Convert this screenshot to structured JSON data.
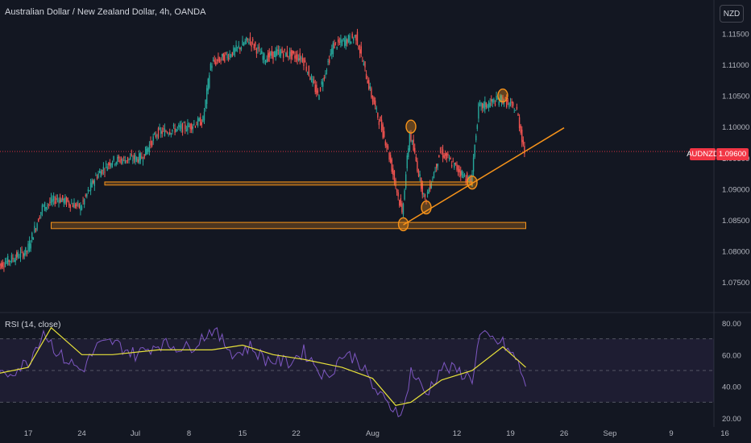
{
  "header": {
    "title": "Australian Dollar / New Zealand Dollar, 4h, OANDA"
  },
  "currency_button": {
    "label": "NZD"
  },
  "price_tag": {
    "symbol": "AUDNZD",
    "value": "1.09600"
  },
  "rsi_panel": {
    "title": "RSI (14, close)"
  },
  "colors": {
    "up": "#26a69a",
    "down": "#ef5350",
    "annotation": "#f7931a",
    "rsi": "#7e57c2",
    "rsi_ma": "#e8e23a",
    "background": "#131722"
  },
  "chart_data": [
    {
      "type": "candlestick",
      "title": "Australian Dollar / New Zealand Dollar, 4h, OANDA",
      "y_axis": {
        "ticks": [
          "1.11500",
          "1.11000",
          "1.10500",
          "1.10000",
          "1.09500",
          "1.09000",
          "1.08500",
          "1.08000",
          "1.07500"
        ],
        "ylim": [
          1.0705,
          1.1175
        ]
      },
      "x_axis": {
        "ticks": [
          "17",
          "24",
          "Jul",
          "8",
          "15",
          "22",
          "Aug",
          "12",
          "19",
          "26",
          "Sep",
          "9",
          "16"
        ]
      },
      "last_price": 1.096,
      "price_path": [
        {
          "date": "Jun 13",
          "price": 1.0775
        },
        {
          "date": "Jun 17",
          "price": 1.08
        },
        {
          "date": "Jun 19",
          "price": 1.087
        },
        {
          "date": "Jun 21",
          "price": 1.0885
        },
        {
          "date": "Jun 24",
          "price": 1.087
        },
        {
          "date": "Jun 26",
          "price": 1.092
        },
        {
          "date": "Jun 28",
          "price": 1.0945
        },
        {
          "date": "Jul 2",
          "price": 1.095
        },
        {
          "date": "Jul 4",
          "price": 1.099
        },
        {
          "date": "Jul 8",
          "price": 1.1
        },
        {
          "date": "Jul 10",
          "price": 1.101
        },
        {
          "date": "Jul 11",
          "price": 1.11
        },
        {
          "date": "Jul 14",
          "price": 1.112
        },
        {
          "date": "Jul 16",
          "price": 1.114
        },
        {
          "date": "Jul 18",
          "price": 1.111
        },
        {
          "date": "Jul 20",
          "price": 1.112
        },
        {
          "date": "Jul 23",
          "price": 1.111
        },
        {
          "date": "Jul 25",
          "price": 1.105
        },
        {
          "date": "Jul 27",
          "price": 1.113
        },
        {
          "date": "Jul 30",
          "price": 1.1145
        },
        {
          "date": "Aug 1",
          "price": 1.105
        },
        {
          "date": "Aug 3",
          "price": 1.097
        },
        {
          "date": "Aug 5",
          "price": 1.086
        },
        {
          "date": "Aug 6",
          "price": 1.099
        },
        {
          "date": "Aug 8",
          "price": 1.088
        },
        {
          "date": "Aug 10",
          "price": 1.096
        },
        {
          "date": "Aug 12",
          "price": 1.0935
        },
        {
          "date": "Aug 14",
          "price": 1.091
        },
        {
          "date": "Aug 15",
          "price": 1.103
        },
        {
          "date": "Aug 18",
          "price": 1.1045
        },
        {
          "date": "Aug 20",
          "price": 1.1025
        },
        {
          "date": "Aug 21",
          "price": 1.096
        }
      ],
      "annotations": {
        "support_zones": [
          {
            "from": "Jun 27",
            "to": "Aug 14",
            "low": 1.0906,
            "high": 1.0911
          },
          {
            "from": "Jun 20",
            "to": "Aug 21",
            "low": 1.0836,
            "high": 1.0846
          }
        ],
        "trendline": [
          {
            "date": "Aug 5",
            "price": 1.0842
          },
          {
            "date": "Aug 26",
            "price": 1.0998
          }
        ],
        "marked_points": [
          {
            "date": "Aug 5",
            "price": 1.0843
          },
          {
            "date": "Aug 6",
            "price": 1.1
          },
          {
            "date": "Aug 8",
            "price": 1.087
          },
          {
            "date": "Aug 14",
            "price": 1.091
          },
          {
            "date": "Aug 18",
            "price": 1.105
          }
        ]
      }
    },
    {
      "type": "line",
      "title": "RSI (14, close)",
      "y_axis": {
        "ticks": [
          "80.00",
          "60.00",
          "40.00",
          "20.00"
        ],
        "ylim": [
          17,
          83
        ],
        "bands": [
          70,
          50,
          30
        ]
      },
      "series": [
        {
          "values": [
            {
              "date": "Jun 13",
              "value": 45
            },
            {
              "date": "Jun 15",
              "value": 50
            },
            {
              "date": "Jun 17",
              "value": 55
            },
            {
              "date": "Jun 19",
              "value": 75
            },
            {
              "date": "Jun 21",
              "value": 60
            },
            {
              "date": "Jun 24",
              "value": 50
            },
            {
              "date": "Jun 26",
              "value": 65
            },
            {
              "date": "Jun 28",
              "value": 68
            },
            {
              "date": "Jul 1",
              "value": 60
            },
            {
              "date": "Jul 4",
              "value": 67
            },
            {
              "date": "Jul 8",
              "value": 64
            },
            {
              "date": "Jul 11",
              "value": 76
            },
            {
              "date": "Jul 14",
              "value": 60
            },
            {
              "date": "Jul 16",
              "value": 65
            },
            {
              "date": "Jul 18",
              "value": 57
            },
            {
              "date": "Jul 21",
              "value": 55
            },
            {
              "date": "Jul 23",
              "value": 62
            },
            {
              "date": "Jul 26",
              "value": 45
            },
            {
              "date": "Jul 28",
              "value": 60
            },
            {
              "date": "Jul 30",
              "value": 58
            },
            {
              "date": "Aug 1",
              "value": 40
            },
            {
              "date": "Aug 3",
              "value": 28
            },
            {
              "date": "Aug 5",
              "value": 24
            },
            {
              "date": "Aug 6",
              "value": 50
            },
            {
              "date": "Aug 8",
              "value": 35
            },
            {
              "date": "Aug 10",
              "value": 52
            },
            {
              "date": "Aug 12",
              "value": 50
            },
            {
              "date": "Aug 14",
              "value": 45
            },
            {
              "date": "Aug 15",
              "value": 72
            },
            {
              "date": "Aug 18",
              "value": 67
            },
            {
              "date": "Aug 20",
              "value": 55
            },
            {
              "date": "Aug 21",
              "value": 40
            }
          ]
        },
        {
          "values": [
            {
              "date": "Jun 13",
              "value": 48
            },
            {
              "date": "Jun 17",
              "value": 52
            },
            {
              "date": "Jun 20",
              "value": 77
            },
            {
              "date": "Jun 24",
              "value": 60
            },
            {
              "date": "Jun 28",
              "value": 60
            },
            {
              "date": "Jul 4",
              "value": 63
            },
            {
              "date": "Jul 11",
              "value": 63
            },
            {
              "date": "Jul 15",
              "value": 66
            },
            {
              "date": "Jul 19",
              "value": 60
            },
            {
              "date": "Jul 23",
              "value": 57
            },
            {
              "date": "Jul 28",
              "value": 52
            },
            {
              "date": "Aug 1",
              "value": 45
            },
            {
              "date": "Aug 4",
              "value": 28
            },
            {
              "date": "Aug 6",
              "value": 30
            },
            {
              "date": "Aug 10",
              "value": 44
            },
            {
              "date": "Aug 14",
              "value": 50
            },
            {
              "date": "Aug 18",
              "value": 65
            },
            {
              "date": "Aug 21",
              "value": 52
            }
          ]
        }
      ]
    }
  ]
}
